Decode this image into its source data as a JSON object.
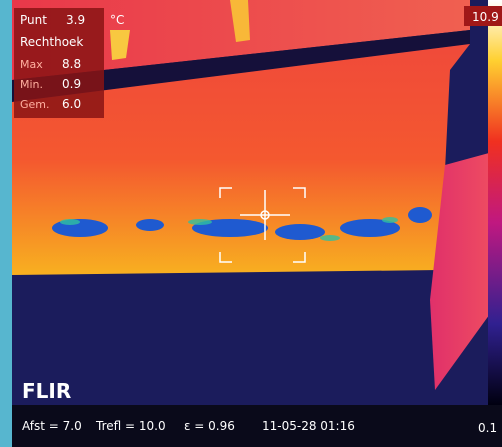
{
  "measurements": {
    "spot": {
      "label": "Punt",
      "value": "3.9"
    },
    "unit": "°C",
    "box_label": "Rechthoek",
    "stats": [
      {
        "label": "Max",
        "value": "8.8"
      },
      {
        "label": "Min.",
        "value": "0.9"
      },
      {
        "label": "Gem.",
        "value": "6.0"
      }
    ]
  },
  "scale": {
    "max": "10.9",
    "min": "0.1"
  },
  "logo": "FLIR",
  "footer": [
    "Afst = 7.0",
    "Trefl = 10.0",
    "ε = 0.96",
    "11-05-28 01:16"
  ]
}
